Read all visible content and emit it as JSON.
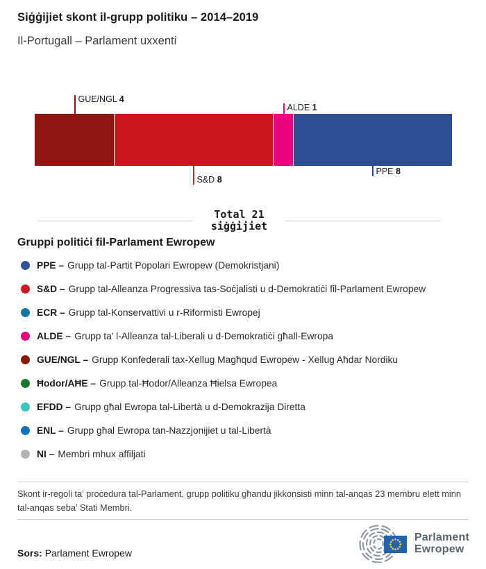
{
  "header": {
    "title": "Siġġijiet skont il-grupp politiku – 2014–2019",
    "subtitle": "Il-Portugall – Parlament uxxenti"
  },
  "chart_data": {
    "type": "bar",
    "subtype": "horizontal-stacked-single-bar",
    "title": "Siġġijiet skont il-grupp politiku – 2014–2019",
    "subtitle": "Il-Portugall – Parlament uxxenti",
    "categories": [
      "GUE/NGL",
      "S&D",
      "ALDE",
      "PPE"
    ],
    "values": [
      4,
      8,
      1,
      8
    ],
    "total": 21,
    "segments": [
      {
        "group": "GUE/NGL",
        "seats": 4,
        "color": "#8C1710",
        "label_side": "top"
      },
      {
        "group": "S&D",
        "seats": 8,
        "color": "#C8161C",
        "label_side": "bottom"
      },
      {
        "group": "ALDE",
        "seats": 1,
        "color": "#E5067F",
        "label_side": "top"
      },
      {
        "group": "PPE",
        "seats": 8,
        "color": "#2C4D91",
        "label_side": "bottom"
      }
    ],
    "legend_position": "bottom",
    "grid": false
  },
  "total": {
    "line1": "Total 21",
    "line2": "siġġijiet"
  },
  "legend": {
    "heading": "Gruppi politiċi fil-Parlament Ewropew",
    "items": [
      {
        "abbr": "PPE –",
        "desc": "Grupp tal-Partit Popolari Ewropew (Demokristjani)",
        "color": "#32509B"
      },
      {
        "abbr": "S&D –",
        "desc": "Grupp tal-Alleanza Progressiva tas-Soċjalisti u d-Demokratiċi fil-Parlament Ewropew",
        "color": "#CB1A20"
      },
      {
        "abbr": "ECR –",
        "desc": "Grupp tal-Konservattivi u r-Riformisti Ewropej",
        "color": "#1478A4"
      },
      {
        "abbr": "ALDE –",
        "desc": "Grupp ta’ l-Alleanza tal-Liberali u d-Demokratiċi għall-Ewropa",
        "color": "#E5067F"
      },
      {
        "abbr": "GUE/NGL –",
        "desc": "Grupp Konfederali tax-Xellug Magħqud Ewropew - Xellug Aħdar Nordiku",
        "color": "#8C1710"
      },
      {
        "abbr": "Ħodor/AĦE –",
        "desc": "Grupp tal-Ħodor/Alleanza Ħielsa Ewropea",
        "color": "#16792F"
      },
      {
        "abbr": "EFDD –",
        "desc": "Grupp għal Ewropa tal-Libertà u d-Demokrazija Diretta",
        "color": "#38C6BD"
      },
      {
        "abbr": "ENL –",
        "desc": "Grupp għal Ewropa tan-Nazzjonijiet u tal-Libertà",
        "color": "#1173BE"
      },
      {
        "abbr": "NI –",
        "desc": "Membri mhux affiljati",
        "color": "#B2B2B2"
      }
    ]
  },
  "note": "Skont ir-regoli ta’ proċedura tal-Parlament, grupp politiku għandu jikkonsisti minn tal-anqas 23 membru elett minn tal-anqas seba’ Stati Membri.",
  "footer": {
    "source_label": "Sors:",
    "source_value": "Parlament Ewropew",
    "logo_line1": "Parlament",
    "logo_line2": "Ewropew",
    "logo_text_color": "#5A646E",
    "flag_color": "#2263AB",
    "star_color": "#FFD617",
    "hemicycle_color": "#8A949E"
  }
}
